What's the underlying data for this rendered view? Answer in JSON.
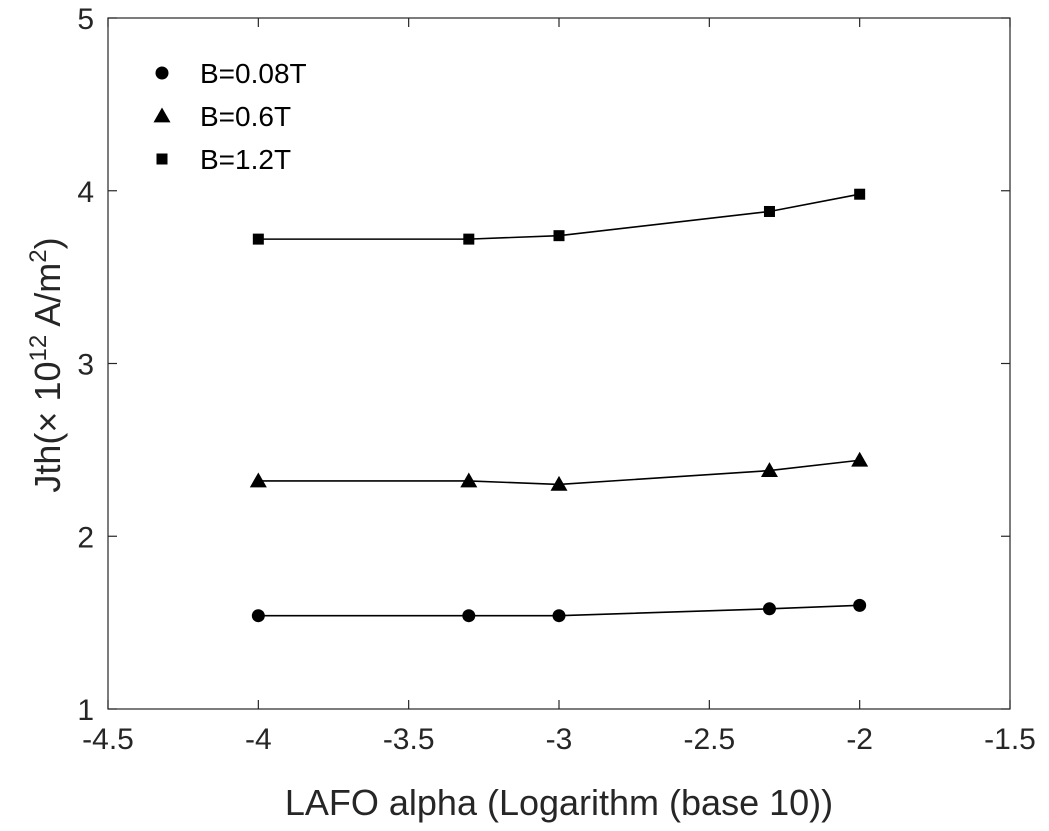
{
  "chart_data": {
    "type": "line",
    "xlabel": "LAFO alpha (Logarithm (base 10))",
    "ylabel": {
      "base": "Jth(",
      "times": "×",
      "ten": " 10",
      "exp": "12",
      "unit": " A/m",
      "unit_exp": "2",
      "close": ")"
    },
    "xlim": [
      -4.5,
      -1.5
    ],
    "ylim": [
      1,
      5
    ],
    "xticks": [
      "-4.5",
      "-4",
      "-3.5",
      "-3",
      "-2.5",
      "-2",
      "-1.5"
    ],
    "yticks": [
      "1",
      "2",
      "3",
      "4",
      "5"
    ],
    "x": [
      -4,
      -3.3,
      -3,
      -2.3,
      -2
    ],
    "legend_position": "top-left",
    "series": [
      {
        "name": "B=0.08T",
        "marker": "circle",
        "values": [
          1.54,
          1.54,
          1.54,
          1.58,
          1.6
        ]
      },
      {
        "name": "B=0.6T",
        "marker": "triangle",
        "values": [
          2.32,
          2.32,
          2.3,
          2.38,
          2.44
        ]
      },
      {
        "name": "B=1.2T",
        "marker": "square",
        "values": [
          3.72,
          3.72,
          3.74,
          3.88,
          3.98
        ]
      }
    ]
  }
}
